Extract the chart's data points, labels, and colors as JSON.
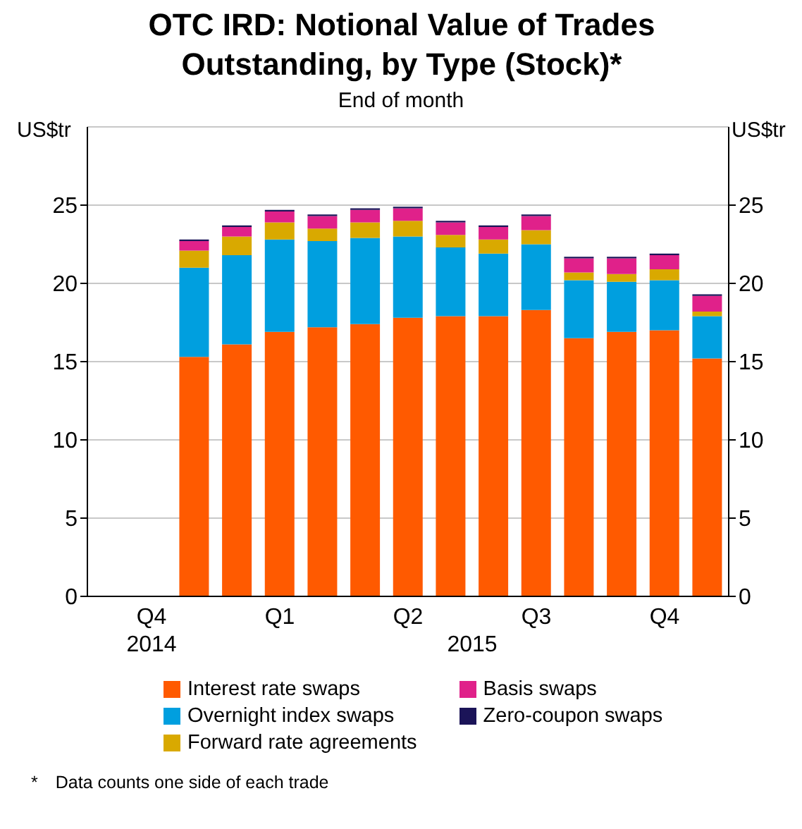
{
  "chart_data": {
    "type": "bar",
    "title": "OTC IRD: Notional Value of Trades Outstanding, by Type (Stock)*",
    "subtitle": "End of month",
    "ylabel": "US$tr",
    "y2label": "US$tr",
    "categories": [
      null,
      "Q4",
      null,
      null,
      "Q1",
      null,
      null,
      "Q2",
      null,
      null,
      "Q3",
      null,
      null,
      "Q4",
      null
    ],
    "stacked": true,
    "ylim": [
      0,
      30
    ],
    "yticks": [
      0,
      5,
      10,
      15,
      20,
      25
    ],
    "y2lim": [
      0,
      30
    ],
    "y2ticks": [
      0,
      5,
      10,
      15,
      20,
      25
    ],
    "grid": "y",
    "legend": "bottom",
    "series": [
      {
        "name": "Interest rate swaps",
        "color": "#ff5a00",
        "values": [
          null,
          null,
          15.3,
          16.1,
          16.9,
          17.2,
          17.4,
          17.8,
          17.9,
          17.9,
          18.3,
          16.5,
          16.9,
          17.0,
          15.2
        ]
      },
      {
        "name": "Overnight index swaps",
        "color": "#009fdf",
        "values": [
          null,
          null,
          5.7,
          5.7,
          5.9,
          5.5,
          5.5,
          5.2,
          4.4,
          4.0,
          4.2,
          3.7,
          3.2,
          3.2,
          2.7
        ]
      },
      {
        "name": "Forward rate agreements",
        "color": "#d9a900",
        "values": [
          null,
          null,
          1.1,
          1.2,
          1.1,
          0.8,
          1.0,
          1.0,
          0.8,
          0.9,
          0.9,
          0.5,
          0.5,
          0.7,
          0.3
        ]
      },
      {
        "name": "Basis swaps",
        "color": "#e0218a",
        "values": [
          null,
          null,
          0.6,
          0.6,
          0.7,
          0.8,
          0.8,
          0.8,
          0.8,
          0.8,
          0.9,
          0.9,
          1.0,
          0.9,
          1.0
        ]
      },
      {
        "name": "Zero-coupon swaps",
        "color": "#1b1458",
        "values": [
          null,
          null,
          0.1,
          0.1,
          0.1,
          0.1,
          0.1,
          0.1,
          0.1,
          0.1,
          0.1,
          0.1,
          0.1,
          0.1,
          0.1
        ]
      }
    ],
    "annotations": [
      "2014",
      "2015",
      "* Data counts one side of each trade"
    ]
  }
}
